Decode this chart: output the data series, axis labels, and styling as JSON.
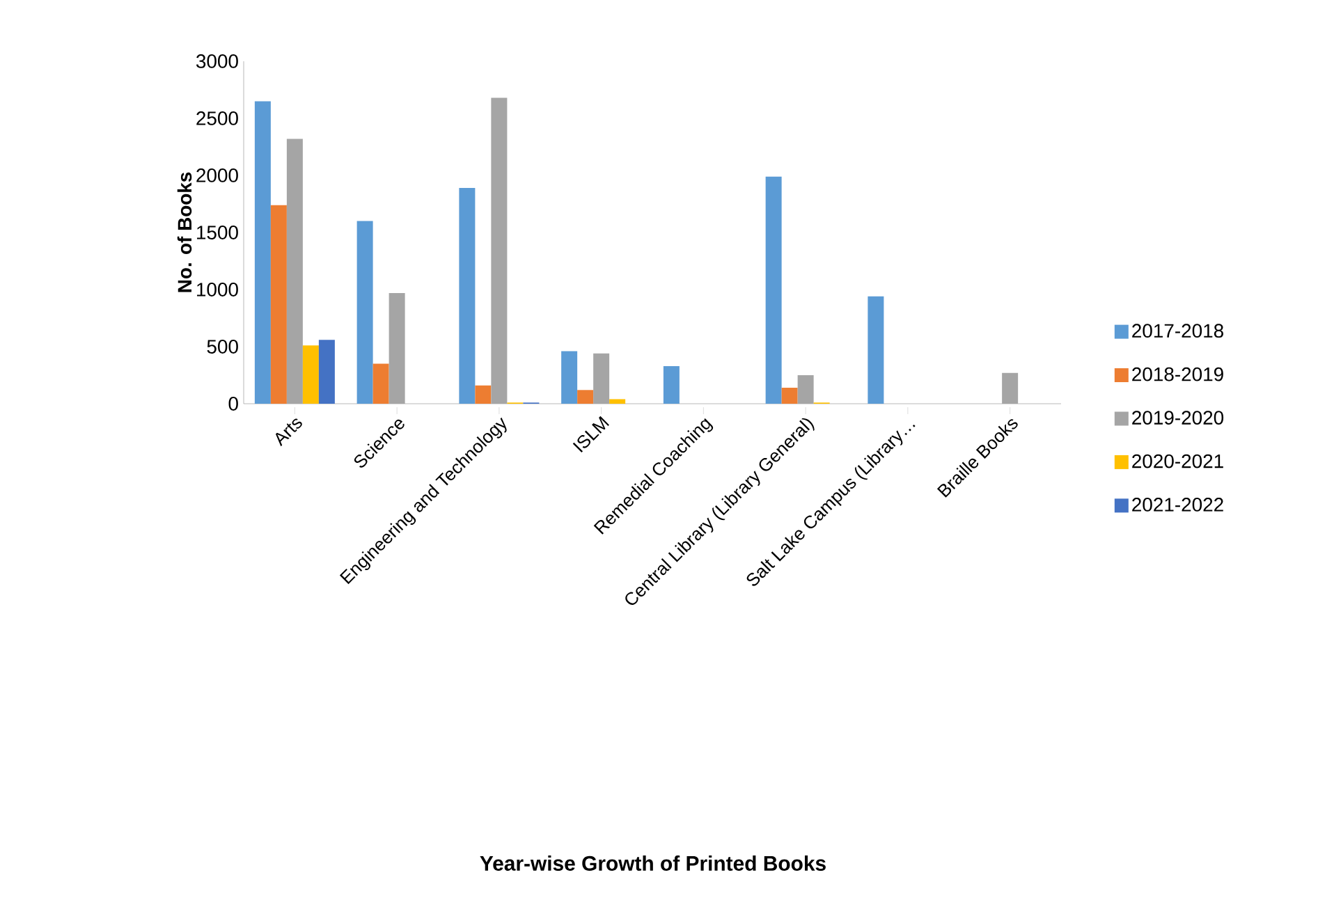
{
  "chart_data": {
    "type": "bar",
    "title": "Year-wise Growth of Printed Books",
    "ylabel": "No. of Books",
    "categories": [
      "Arts",
      "Science",
      "Engineering and Technology",
      "ISLM",
      "Remedial Coaching",
      "Central Library (Library General)",
      "Salt Lake Campus (Library…",
      "Braille Books"
    ],
    "series": [
      {
        "name": "2017-2018",
        "color": "#5b9bd5",
        "values": [
          2650,
          1600,
          1890,
          460,
          330,
          1990,
          940,
          null
        ]
      },
      {
        "name": "2018-2019",
        "color": "#ed7d31",
        "values": [
          1740,
          350,
          160,
          120,
          null,
          140,
          null,
          null
        ]
      },
      {
        "name": "2019-2020",
        "color": "#a5a5a5",
        "values": [
          2320,
          970,
          2680,
          440,
          null,
          250,
          null,
          270
        ]
      },
      {
        "name": "2020-2021",
        "color": "#ffc000",
        "values": [
          510,
          null,
          10,
          40,
          null,
          10,
          null,
          null
        ]
      },
      {
        "name": "2021-2022",
        "color": "#4472c4",
        "values": [
          560,
          null,
          10,
          null,
          null,
          null,
          null,
          null
        ]
      }
    ],
    "ylim": [
      0,
      3000
    ],
    "yticks": [
      0,
      500,
      1000,
      1500,
      2000,
      2500,
      3000
    ],
    "grid": false,
    "legend": "right"
  }
}
